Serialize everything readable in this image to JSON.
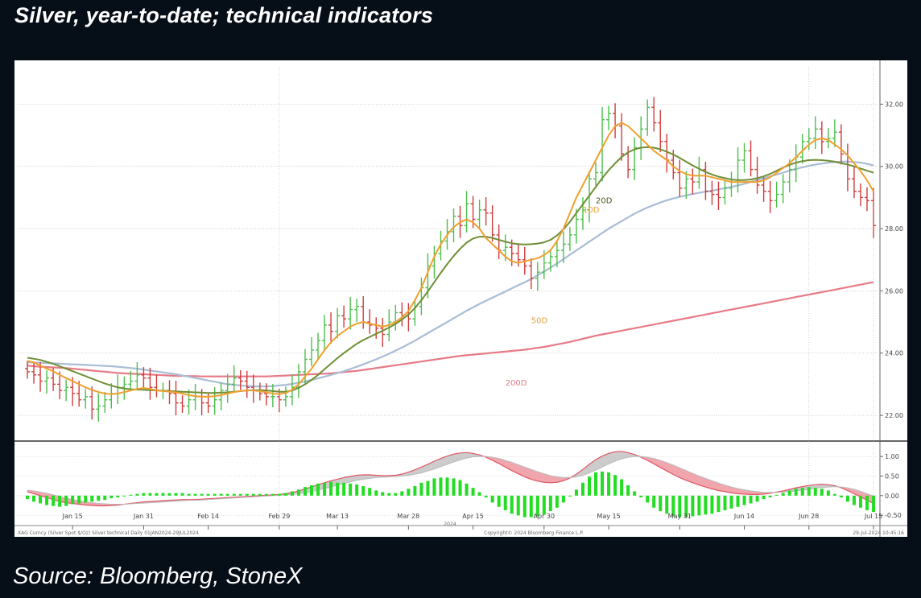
{
  "title": "Silver, year-to-date; technical indicators",
  "source": "Source: Bloomberg, StoneX",
  "footer": {
    "left": "XAG Curncy (Silver Spot $/Oz) Silver technical Daily 01JAN2024-29JUL2024",
    "center": "Copyright© 2024 Bloomberg Finance L.P.",
    "right": "29-Jul-2024 10:45:16",
    "year": "2024"
  },
  "colors": {
    "ma10": "#f0a030",
    "ma20": "#6f8f35",
    "ma50": "#a8bdd6",
    "ma200": "#e77a86",
    "up": "#4cbf4c",
    "down": "#d23c3c",
    "hist": "#22dd22",
    "macd_fill": "#f1a6ad",
    "signal_fill": "#cccccc"
  },
  "chart_data": [
    {
      "type": "candlestick",
      "panel": "price",
      "y_axis_side": "right",
      "ylim": [
        21.2,
        33.2
      ],
      "yticks": [
        "22.00",
        "24.00",
        "26.00",
        "28.00",
        "30.00",
        "32.00"
      ],
      "x_ticks": [
        "Jan 15",
        "Jan 31",
        "Feb 14",
        "Feb 29",
        "Mar 13",
        "Mar 28",
        "Apr 15",
        "Apr 30",
        "May 15",
        "May 31",
        "Jun 14",
        "Jun 28",
        "Jul 15"
      ],
      "ma_labels": {
        "ma10": "10D",
        "ma20": "20D",
        "ma50": "50D",
        "ma200": "200D"
      },
      "close": [
        23.4,
        23.3,
        23.1,
        23.2,
        23.0,
        22.8,
        22.9,
        22.7,
        22.5,
        22.6,
        22.2,
        22.3,
        22.5,
        22.7,
        22.9,
        23.0,
        23.1,
        23.3,
        23.2,
        22.9,
        22.8,
        22.8,
        22.7,
        22.4,
        22.3,
        22.5,
        22.6,
        22.4,
        22.3,
        22.5,
        22.8,
        23.0,
        23.2,
        23.1,
        22.9,
        22.8,
        22.7,
        22.6,
        22.6,
        22.5,
        22.6,
        22.9,
        23.4,
        23.8,
        24.1,
        24.4,
        24.9,
        24.7,
        25.2,
        25.1,
        25.4,
        25.5,
        25.0,
        24.9,
        24.8,
        24.6,
        25.0,
        25.3,
        25.2,
        25.1,
        25.5,
        26.1,
        26.8,
        27.2,
        27.6,
        27.9,
        28.4,
        28.1,
        28.8,
        28.3,
        28.6,
        28.5,
        27.8,
        27.3,
        27.4,
        27.2,
        27.0,
        26.8,
        26.4,
        26.6,
        26.9,
        27.1,
        27.3,
        27.5,
        27.8,
        28.3,
        28.6,
        29.6,
        29.8,
        31.5,
        31.7,
        31.3,
        30.4,
        29.9,
        30.6,
        31.2,
        31.9,
        31.4,
        30.8,
        30.2,
        29.8,
        29.3,
        29.6,
        29.5,
        29.9,
        29.2,
        29.1,
        29.0,
        29.3,
        29.5,
        30.2,
        30.5,
        29.9,
        29.4,
        29.2,
        28.9,
        29.1,
        29.5,
        29.9,
        30.3,
        30.8,
        30.9,
        31.2,
        30.8,
        30.9,
        31.1,
        30.4,
        29.6,
        29.2,
        29.0,
        28.9,
        28.1
      ],
      "ma10": [
        23.75,
        23.7,
        23.6,
        23.5,
        23.42,
        23.3,
        23.2,
        23.1,
        23.0,
        22.9,
        22.82,
        22.75,
        22.7,
        22.68,
        22.7,
        22.75,
        22.8,
        22.85,
        22.88,
        22.85,
        22.8,
        22.78,
        22.76,
        22.74,
        22.7,
        22.65,
        22.62,
        22.6,
        22.6,
        22.62,
        22.65,
        22.7,
        22.75,
        22.78,
        22.8,
        22.8,
        22.78,
        22.74,
        22.7,
        22.68,
        22.72,
        22.82,
        23.0,
        23.25,
        23.5,
        23.8,
        24.1,
        24.35,
        24.55,
        24.7,
        24.85,
        24.95,
        25.0,
        24.95,
        24.9,
        24.85,
        24.9,
        25.0,
        25.15,
        25.35,
        25.7,
        26.1,
        26.6,
        27.1,
        27.5,
        27.8,
        28.05,
        28.2,
        28.3,
        28.2,
        28.0,
        27.7,
        27.5,
        27.3,
        27.1,
        26.95,
        26.9,
        26.95,
        27.0,
        27.05,
        27.15,
        27.3,
        27.6,
        28.0,
        28.5,
        29.0,
        29.4,
        29.8,
        30.2,
        30.6,
        31.0,
        31.3,
        31.4,
        31.3,
        31.1,
        30.9,
        30.7,
        30.5,
        30.35,
        30.2,
        30.0,
        29.85,
        29.75,
        29.7,
        29.7,
        29.7,
        29.65,
        29.6,
        29.55,
        29.5,
        29.5,
        29.5,
        29.5,
        29.5,
        29.55,
        29.65,
        29.8,
        29.95,
        30.1,
        30.3,
        30.5,
        30.7,
        30.85,
        30.9,
        30.85,
        30.7,
        30.55,
        30.35,
        30.1,
        29.85,
        29.55,
        29.2
      ],
      "ma20": [
        23.85,
        23.82,
        23.78,
        23.72,
        23.66,
        23.58,
        23.5,
        23.42,
        23.34,
        23.26,
        23.18,
        23.1,
        23.02,
        22.96,
        22.9,
        22.86,
        22.84,
        22.83,
        22.82,
        22.81,
        22.8,
        22.79,
        22.78,
        22.77,
        22.76,
        22.75,
        22.74,
        22.73,
        22.72,
        22.72,
        22.73,
        22.74,
        22.76,
        22.78,
        22.8,
        22.81,
        22.81,
        22.8,
        22.78,
        22.76,
        22.76,
        22.8,
        22.88,
        23.0,
        23.14,
        23.3,
        23.48,
        23.66,
        23.84,
        24.0,
        24.15,
        24.3,
        24.42,
        24.52,
        24.62,
        24.72,
        24.82,
        24.94,
        25.08,
        25.24,
        25.45,
        25.7,
        25.98,
        26.28,
        26.58,
        26.86,
        27.12,
        27.35,
        27.55,
        27.68,
        27.74,
        27.74,
        27.7,
        27.64,
        27.58,
        27.53,
        27.5,
        27.49,
        27.5,
        27.52,
        27.56,
        27.64,
        27.78,
        27.98,
        28.22,
        28.5,
        28.78,
        29.06,
        29.34,
        29.62,
        29.88,
        30.1,
        30.3,
        30.45,
        30.55,
        30.6,
        30.62,
        30.6,
        30.55,
        30.47,
        30.38,
        30.27,
        30.15,
        30.03,
        29.92,
        29.82,
        29.74,
        29.67,
        29.62,
        29.58,
        29.56,
        29.56,
        29.58,
        29.62,
        29.68,
        29.76,
        29.86,
        29.96,
        30.05,
        30.12,
        30.17,
        30.2,
        30.21,
        30.2,
        30.18,
        30.15,
        30.1,
        30.06,
        30.0,
        29.93,
        29.86,
        29.8
      ],
      "ma50": [
        23.7,
        23.7,
        23.69,
        23.68,
        23.67,
        23.66,
        23.65,
        23.64,
        23.63,
        23.62,
        23.61,
        23.6,
        23.59,
        23.58,
        23.56,
        23.54,
        23.52,
        23.5,
        23.47,
        23.44,
        23.41,
        23.38,
        23.35,
        23.32,
        23.28,
        23.24,
        23.2,
        23.16,
        23.12,
        23.08,
        23.04,
        23.0,
        22.98,
        22.96,
        22.94,
        22.93,
        22.93,
        22.93,
        22.94,
        22.96,
        22.98,
        23.01,
        23.05,
        23.09,
        23.14,
        23.19,
        23.24,
        23.3,
        23.36,
        23.42,
        23.49,
        23.56,
        23.64,
        23.72,
        23.8,
        23.89,
        23.98,
        24.08,
        24.18,
        24.29,
        24.4,
        24.52,
        24.64,
        24.76,
        24.88,
        25.0,
        25.12,
        25.24,
        25.36,
        25.47,
        25.58,
        25.68,
        25.78,
        25.88,
        25.98,
        26.08,
        26.18,
        26.28,
        26.38,
        26.5,
        26.62,
        26.75,
        26.88,
        27.02,
        27.16,
        27.3,
        27.44,
        27.58,
        27.72,
        27.86,
        28.0,
        28.12,
        28.24,
        28.36,
        28.48,
        28.58,
        28.68,
        28.76,
        28.84,
        28.91,
        28.97,
        29.02,
        29.07,
        29.11,
        29.15,
        29.19,
        29.22,
        29.26,
        29.3,
        29.34,
        29.39,
        29.44,
        29.5,
        29.56,
        29.62,
        29.68,
        29.74,
        29.8,
        29.86,
        29.92,
        29.97,
        30.02,
        30.06,
        30.09,
        30.12,
        30.14,
        30.15,
        30.15,
        30.14,
        30.12,
        30.08,
        30.03
      ],
      "ma200": [
        23.6,
        23.58,
        23.56,
        23.55,
        23.54,
        23.53,
        23.52,
        23.5,
        23.48,
        23.46,
        23.44,
        23.42,
        23.4,
        23.38,
        23.36,
        23.35,
        23.34,
        23.33,
        23.32,
        23.31,
        23.3,
        23.29,
        23.28,
        23.27,
        23.27,
        23.26,
        23.26,
        23.25,
        23.25,
        23.25,
        23.25,
        23.25,
        23.25,
        23.25,
        23.25,
        23.25,
        23.25,
        23.25,
        23.26,
        23.27,
        23.28,
        23.29,
        23.3,
        23.31,
        23.32,
        23.33,
        23.34,
        23.35,
        23.37,
        23.39,
        23.41,
        23.43,
        23.46,
        23.49,
        23.52,
        23.55,
        23.58,
        23.61,
        23.64,
        23.67,
        23.7,
        23.73,
        23.76,
        23.79,
        23.82,
        23.85,
        23.88,
        23.91,
        23.93,
        23.95,
        23.97,
        23.99,
        24.01,
        24.03,
        24.05,
        24.07,
        24.09,
        24.11,
        24.14,
        24.17,
        24.2,
        24.24,
        24.28,
        24.32,
        24.36,
        24.41,
        24.46,
        24.51,
        24.56,
        24.6,
        24.64,
        24.68,
        24.72,
        24.76,
        24.8,
        24.84,
        24.88,
        24.92,
        24.96,
        25.0,
        25.04,
        25.08,
        25.12,
        25.16,
        25.2,
        25.24,
        25.28,
        25.32,
        25.36,
        25.4,
        25.44,
        25.48,
        25.52,
        25.56,
        25.6,
        25.64,
        25.68,
        25.72,
        25.76,
        25.8,
        25.84,
        25.88,
        25.92,
        25.96,
        26.0,
        26.04,
        26.08,
        26.12,
        26.16,
        26.2,
        26.24,
        26.28
      ]
    },
    {
      "type": "macd",
      "panel": "indicator",
      "y_axis_side": "right",
      "ylim": [
        -0.6,
        1.25
      ],
      "yticks": [
        "1.00",
        "0.50",
        "0.00",
        "-0.50"
      ],
      "macd": [
        0.1,
        0.05,
        0.0,
        -0.05,
        -0.1,
        -0.15,
        -0.18,
        -0.2,
        -0.22,
        -0.24,
        -0.25,
        -0.26,
        -0.26,
        -0.25,
        -0.24,
        -0.22,
        -0.2,
        -0.18,
        -0.16,
        -0.15,
        -0.14,
        -0.13,
        -0.12,
        -0.11,
        -0.1,
        -0.1,
        -0.1,
        -0.09,
        -0.08,
        -0.07,
        -0.06,
        -0.05,
        -0.04,
        -0.03,
        -0.02,
        -0.01,
        0.0,
        0.01,
        0.02,
        0.03,
        0.05,
        0.08,
        0.12,
        0.17,
        0.22,
        0.28,
        0.33,
        0.38,
        0.42,
        0.46,
        0.49,
        0.52,
        0.53,
        0.53,
        0.52,
        0.51,
        0.51,
        0.52,
        0.55,
        0.6,
        0.66,
        0.73,
        0.8,
        0.88,
        0.95,
        1.01,
        1.06,
        1.09,
        1.1,
        1.08,
        1.04,
        0.98,
        0.9,
        0.82,
        0.73,
        0.64,
        0.56,
        0.48,
        0.42,
        0.37,
        0.34,
        0.33,
        0.34,
        0.38,
        0.45,
        0.55,
        0.67,
        0.8,
        0.92,
        1.01,
        1.08,
        1.12,
        1.13,
        1.1,
        1.05,
        0.98,
        0.9,
        0.81,
        0.72,
        0.63,
        0.54,
        0.46,
        0.39,
        0.33,
        0.27,
        0.22,
        0.17,
        0.13,
        0.1,
        0.07,
        0.05,
        0.04,
        0.03,
        0.03,
        0.04,
        0.06,
        0.09,
        0.12,
        0.16,
        0.2,
        0.23,
        0.26,
        0.28,
        0.29,
        0.28,
        0.25,
        0.2,
        0.13,
        0.05,
        -0.03,
        -0.12,
        -0.2
      ],
      "signal": [
        0.14,
        0.12,
        0.09,
        0.06,
        0.02,
        -0.02,
        -0.06,
        -0.1,
        -0.13,
        -0.16,
        -0.18,
        -0.2,
        -0.21,
        -0.22,
        -0.22,
        -0.22,
        -0.21,
        -0.2,
        -0.19,
        -0.18,
        -0.17,
        -0.16,
        -0.15,
        -0.14,
        -0.13,
        -0.12,
        -0.12,
        -0.11,
        -0.1,
        -0.09,
        -0.08,
        -0.07,
        -0.06,
        -0.05,
        -0.04,
        -0.03,
        -0.02,
        -0.01,
        0.0,
        0.01,
        0.02,
        0.03,
        0.05,
        0.07,
        0.1,
        0.14,
        0.18,
        0.22,
        0.27,
        0.31,
        0.35,
        0.39,
        0.42,
        0.44,
        0.46,
        0.47,
        0.48,
        0.49,
        0.5,
        0.52,
        0.55,
        0.58,
        0.63,
        0.68,
        0.74,
        0.8,
        0.86,
        0.91,
        0.96,
        0.99,
        1.0,
        1.0,
        0.98,
        0.95,
        0.9,
        0.85,
        0.79,
        0.73,
        0.67,
        0.61,
        0.56,
        0.51,
        0.48,
        0.46,
        0.46,
        0.48,
        0.52,
        0.58,
        0.65,
        0.73,
        0.81,
        0.88,
        0.94,
        0.98,
        1.0,
        1.0,
        0.98,
        0.95,
        0.9,
        0.84,
        0.78,
        0.71,
        0.64,
        0.57,
        0.5,
        0.44,
        0.38,
        0.32,
        0.27,
        0.22,
        0.18,
        0.15,
        0.12,
        0.1,
        0.08,
        0.08,
        0.08,
        0.09,
        0.1,
        0.12,
        0.14,
        0.16,
        0.19,
        0.21,
        0.22,
        0.23,
        0.22,
        0.2,
        0.16,
        0.11,
        0.05,
        -0.01
      ]
    }
  ]
}
